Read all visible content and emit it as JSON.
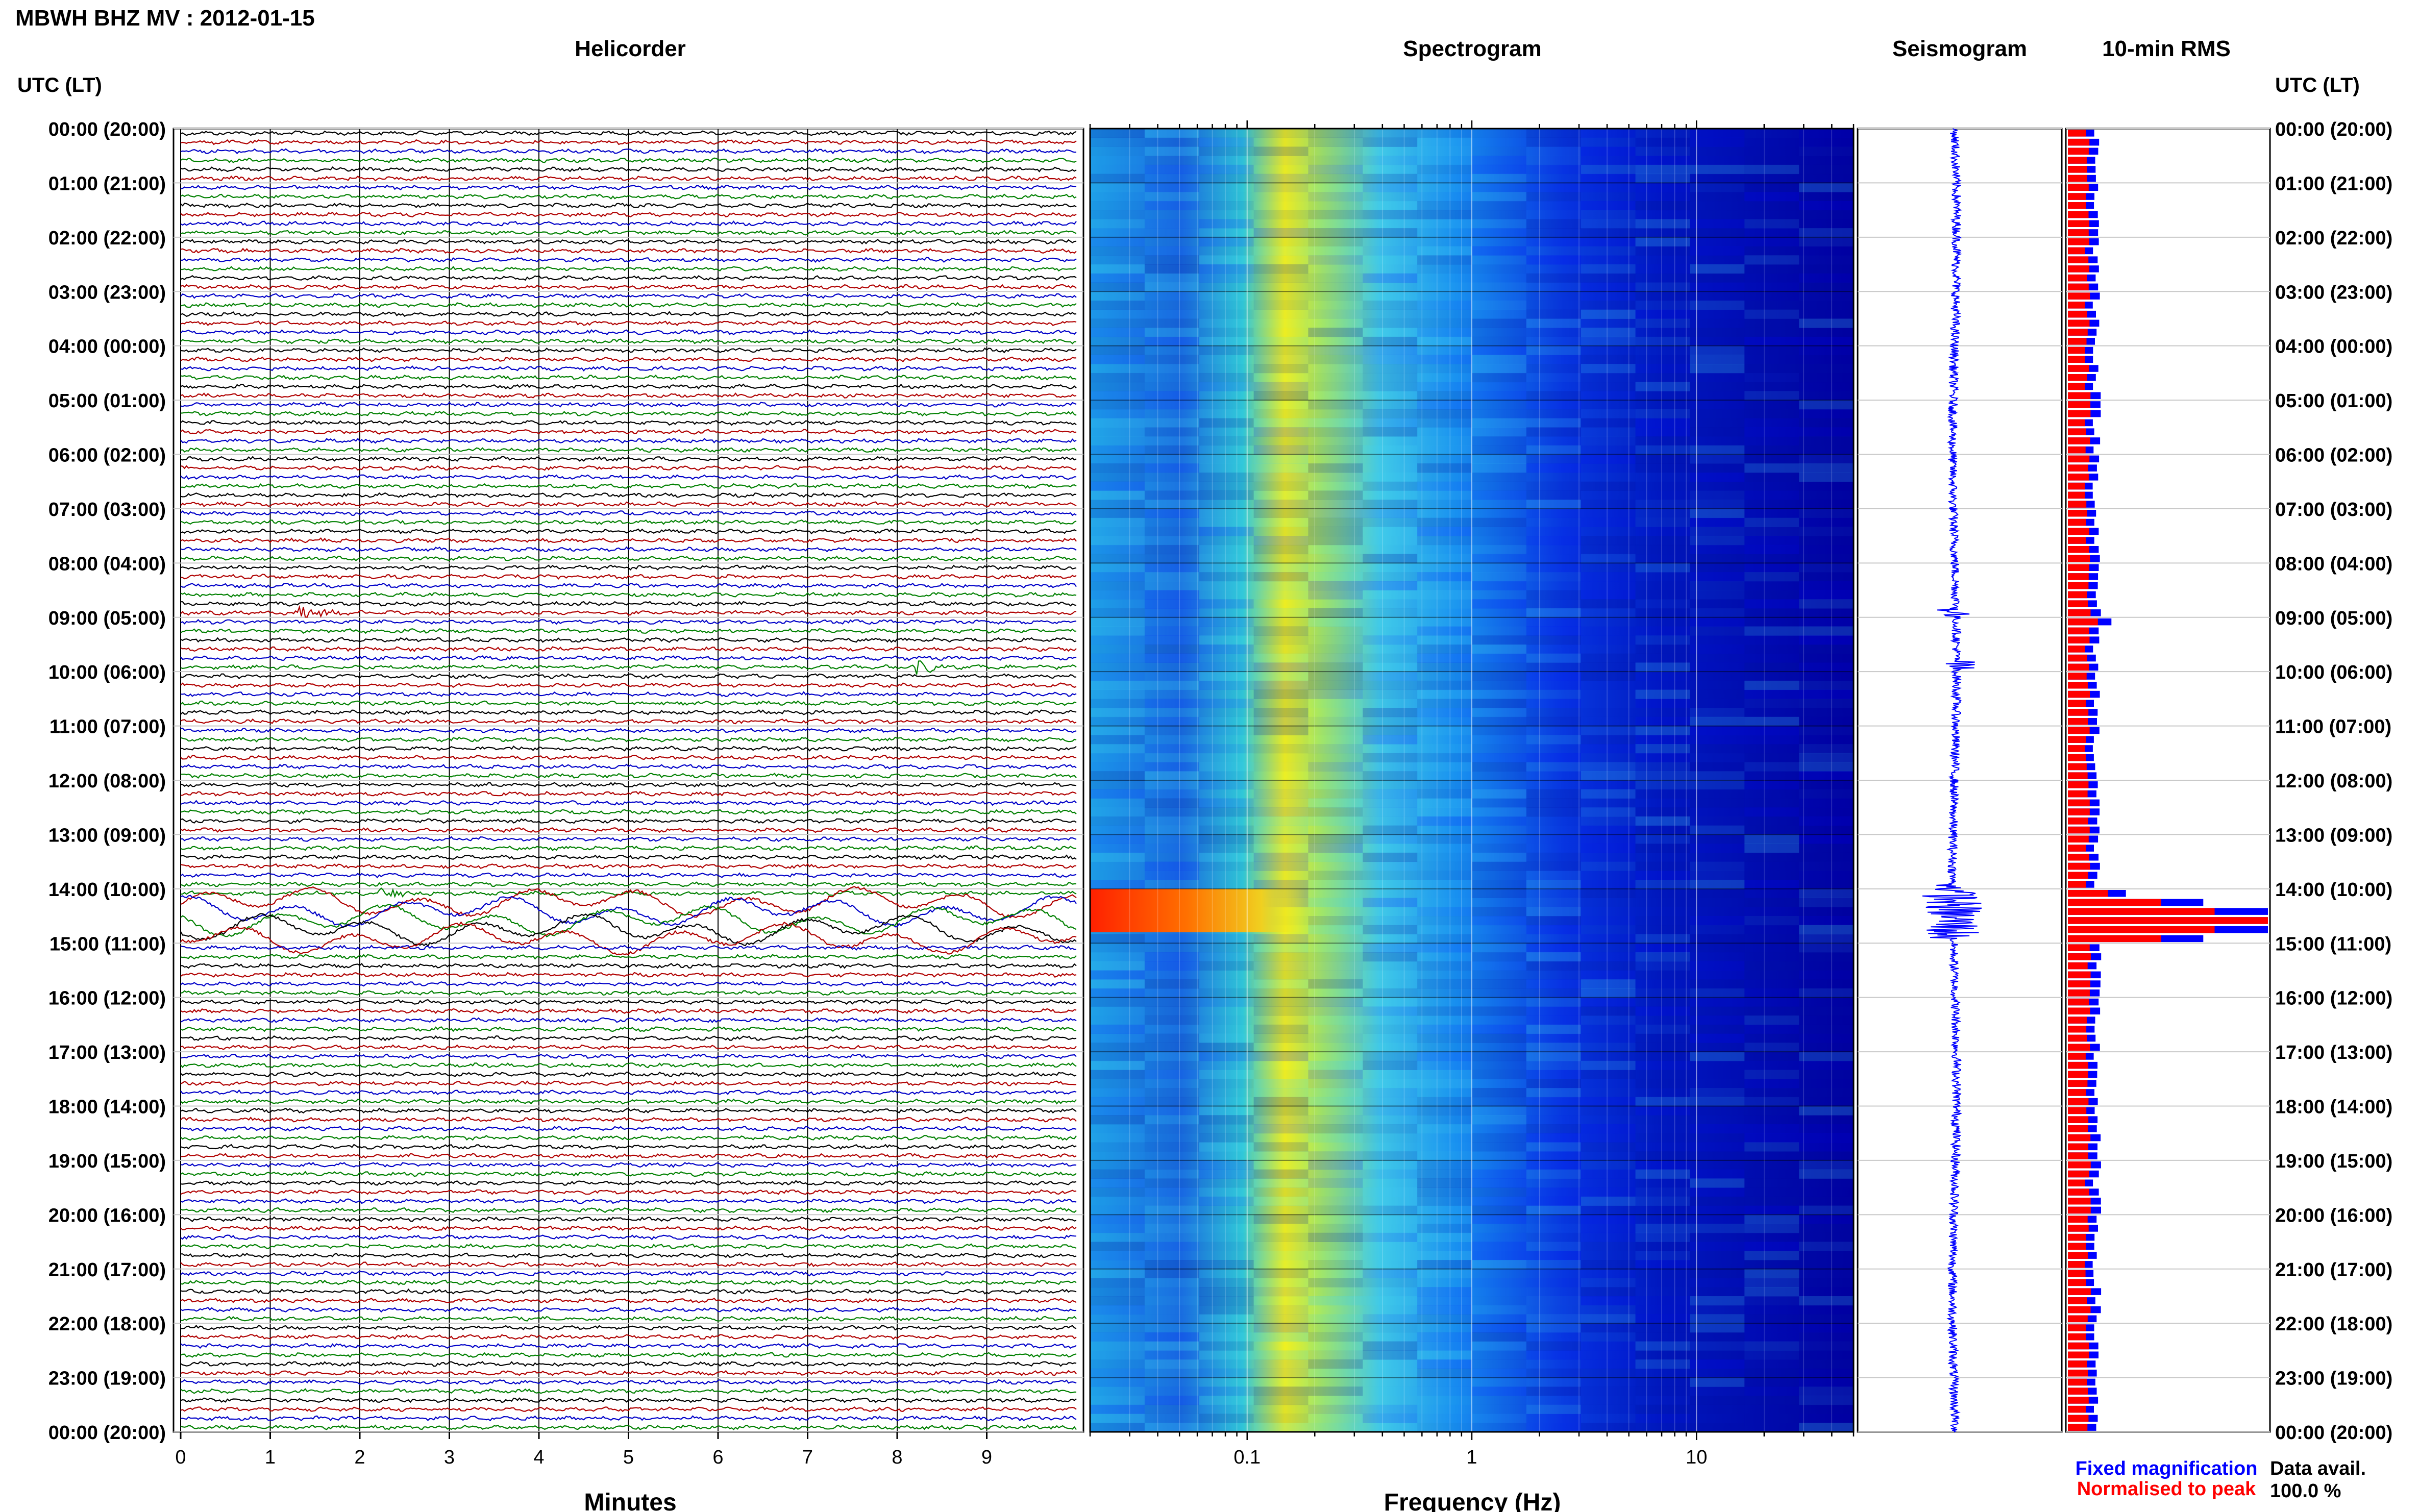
{
  "header": {
    "station_label": "MBWH BHZ MV : 2012-01-15"
  },
  "colors": {
    "trace_cycle": [
      "#000000",
      "#b00000",
      "#0000c8",
      "#008000"
    ],
    "fixed_bar": "#0000ff",
    "normalised_bar": "#ff0000",
    "spectro_low": "#0000b0",
    "spectro_high": "#ff2000"
  },
  "left_axis": {
    "title": "UTC (LT)"
  },
  "right_axis": {
    "title": "UTC (LT)"
  },
  "time_labels": [
    "00:00 (20:00)",
    "01:00 (21:00)",
    "02:00 (22:00)",
    "03:00 (23:00)",
    "04:00 (00:00)",
    "05:00 (01:00)",
    "06:00 (02:00)",
    "07:00 (03:00)",
    "08:00 (04:00)",
    "09:00 (05:00)",
    "10:00 (06:00)",
    "11:00 (07:00)",
    "12:00 (08:00)",
    "13:00 (09:00)",
    "14:00 (10:00)",
    "15:00 (11:00)",
    "16:00 (12:00)",
    "17:00 (13:00)",
    "18:00 (14:00)",
    "19:00 (15:00)",
    "20:00 (16:00)",
    "21:00 (17:00)",
    "22:00 (18:00)",
    "23:00 (19:00)",
    "00:00 (20:00)"
  ],
  "helicorder": {
    "title": "Helicorder",
    "xlabel": "Minutes",
    "xticks": [
      "0",
      "1",
      "2",
      "3",
      "4",
      "5",
      "6",
      "7",
      "8",
      "9"
    ],
    "rows_per_hour": 6,
    "minutes_per_row": 10,
    "events": [
      {
        "hour": 8.9,
        "minute_start": 1.3,
        "minute_end": 2.4,
        "color": "#b00000"
      },
      {
        "hour": 9.9,
        "minute_start": 8.2,
        "minute_end": 9.0,
        "color": "#008000"
      },
      {
        "hour": 14.0,
        "minute_start": 2.2,
        "minute_end": 3.2,
        "color": "#008000"
      }
    ],
    "tremor_window_hours": [
      14.1,
      14.9
    ]
  },
  "spectrogram": {
    "title": "Spectrogram",
    "xlabel": "Frequency (Hz)",
    "xscale": "log",
    "xlim": [
      0.02,
      50
    ],
    "xticks": [
      "0.1",
      "1",
      "10"
    ],
    "tick_values": [
      0.1,
      1,
      10
    ],
    "energy_peak_hz": 0.3,
    "high_energy_window_hours": [
      14.0,
      14.8
    ]
  },
  "seismogram": {
    "title": "Seismogram"
  },
  "rms": {
    "title": "10-min RMS",
    "legend": {
      "fixed": "Fixed magnification",
      "normalised": "Normalised to peak"
    },
    "data_avail_label": "Data avail.",
    "data_avail_value": "100.0 %",
    "bar_count": 144,
    "peak_hour": 14.5
  },
  "chart_data": {
    "type": "heatmap",
    "title": "MBWH BHZ MV : 2012-01-15",
    "panels": [
      "Helicorder",
      "Spectrogram",
      "Seismogram",
      "10-min RMS"
    ],
    "y_axis": {
      "label": "UTC (LT)",
      "range_hours": [
        0,
        24
      ],
      "grid": true
    },
    "helicorder_x": {
      "label": "Minutes",
      "range": [
        0,
        10
      ]
    },
    "spectrogram_x": {
      "label": "Frequency (Hz)",
      "scale": "log",
      "range": [
        0.02,
        50
      ]
    },
    "rms_series": [
      {
        "name": "Fixed magnification"
      },
      {
        "name": "Normalised to peak"
      }
    ],
    "legend_placement": "bottom-right"
  }
}
